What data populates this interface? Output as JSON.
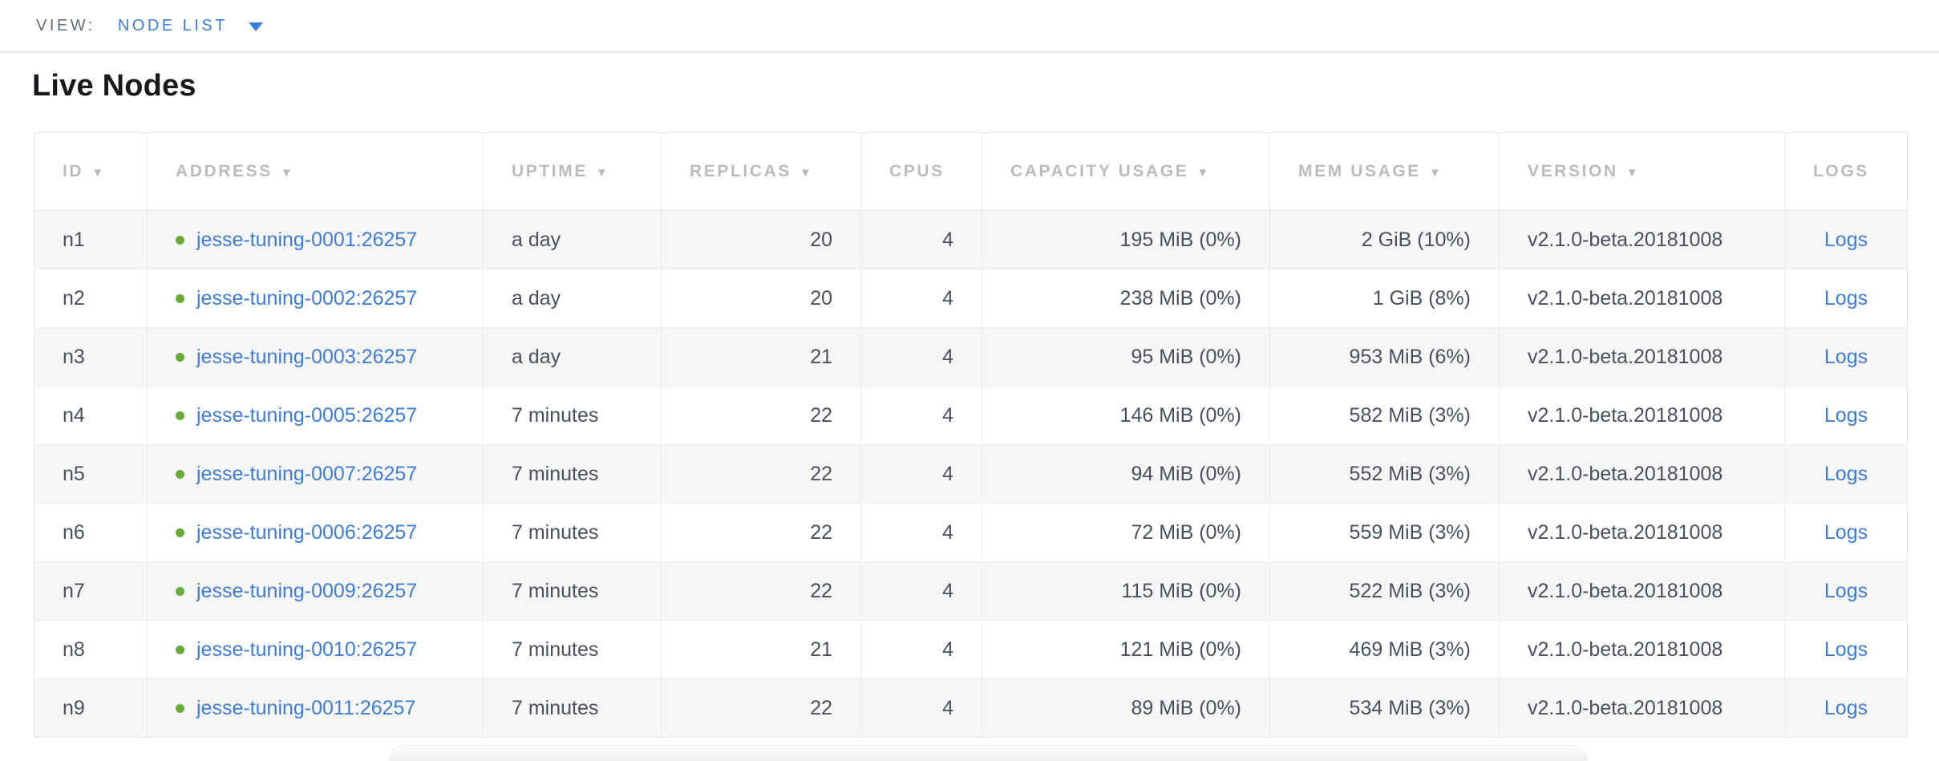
{
  "view_bar": {
    "label": "VIEW:",
    "selected": "NODE LIST"
  },
  "page": {
    "title": "Live Nodes"
  },
  "table": {
    "sort_arrow": "▼",
    "columns": [
      {
        "label": "ID",
        "sortable": true
      },
      {
        "label": "ADDRESS",
        "sortable": true
      },
      {
        "label": "UPTIME",
        "sortable": true
      },
      {
        "label": "REPLICAS",
        "sortable": true
      },
      {
        "label": "CPUS",
        "sortable": false
      },
      {
        "label": "CAPACITY USAGE",
        "sortable": true
      },
      {
        "label": "MEM USAGE",
        "sortable": true
      },
      {
        "label": "VERSION",
        "sortable": true
      },
      {
        "label": "LOGS",
        "sortable": false
      }
    ],
    "rows": [
      {
        "id": "n1",
        "address": "jesse-tuning-0001:26257",
        "uptime": "a day",
        "replicas": "20",
        "cpus": "4",
        "capacity_usage": "195 MiB (0%)",
        "mem_usage": "2 GiB (10%)",
        "version": "v2.1.0-beta.20181008",
        "logs": "Logs"
      },
      {
        "id": "n2",
        "address": "jesse-tuning-0002:26257",
        "uptime": "a day",
        "replicas": "20",
        "cpus": "4",
        "capacity_usage": "238 MiB (0%)",
        "mem_usage": "1 GiB (8%)",
        "version": "v2.1.0-beta.20181008",
        "logs": "Logs"
      },
      {
        "id": "n3",
        "address": "jesse-tuning-0003:26257",
        "uptime": "a day",
        "replicas": "21",
        "cpus": "4",
        "capacity_usage": "95 MiB (0%)",
        "mem_usage": "953 MiB (6%)",
        "version": "v2.1.0-beta.20181008",
        "logs": "Logs"
      },
      {
        "id": "n4",
        "address": "jesse-tuning-0005:26257",
        "uptime": "7 minutes",
        "replicas": "22",
        "cpus": "4",
        "capacity_usage": "146 MiB (0%)",
        "mem_usage": "582 MiB (3%)",
        "version": "v2.1.0-beta.20181008",
        "logs": "Logs"
      },
      {
        "id": "n5",
        "address": "jesse-tuning-0007:26257",
        "uptime": "7 minutes",
        "replicas": "22",
        "cpus": "4",
        "capacity_usage": "94 MiB (0%)",
        "mem_usage": "552 MiB (3%)",
        "version": "v2.1.0-beta.20181008",
        "logs": "Logs"
      },
      {
        "id": "n6",
        "address": "jesse-tuning-0006:26257",
        "uptime": "7 minutes",
        "replicas": "22",
        "cpus": "4",
        "capacity_usage": "72 MiB (0%)",
        "mem_usage": "559 MiB (3%)",
        "version": "v2.1.0-beta.20181008",
        "logs": "Logs"
      },
      {
        "id": "n7",
        "address": "jesse-tuning-0009:26257",
        "uptime": "7 minutes",
        "replicas": "22",
        "cpus": "4",
        "capacity_usage": "115 MiB (0%)",
        "mem_usage": "522 MiB (3%)",
        "version": "v2.1.0-beta.20181008",
        "logs": "Logs"
      },
      {
        "id": "n8",
        "address": "jesse-tuning-0010:26257",
        "uptime": "7 minutes",
        "replicas": "21",
        "cpus": "4",
        "capacity_usage": "121 MiB (0%)",
        "mem_usage": "469 MiB (3%)",
        "version": "v2.1.0-beta.20181008",
        "logs": "Logs"
      },
      {
        "id": "n9",
        "address": "jesse-tuning-0011:26257",
        "uptime": "7 minutes",
        "replicas": "22",
        "cpus": "4",
        "capacity_usage": "89 MiB (0%)",
        "mem_usage": "534 MiB (3%)",
        "version": "v2.1.0-beta.20181008",
        "logs": "Logs"
      }
    ]
  },
  "colors": {
    "link_blue": "#3e7cd6",
    "accent_blue": "#3a7de1",
    "status_green": "#68ab3b",
    "header_gray": "#b9bcbf"
  }
}
